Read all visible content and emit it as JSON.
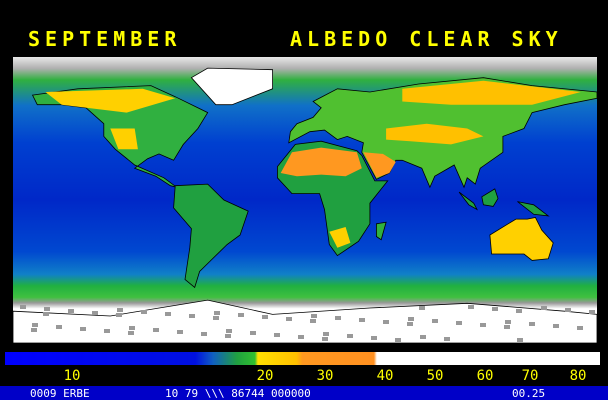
{
  "header": {
    "month": "SEPTEMBER",
    "title": "ALBEDO CLEAR SKY"
  },
  "legend": {
    "ticks": [
      "10",
      "20",
      "30",
      "40",
      "50",
      "60",
      "70",
      "80"
    ]
  },
  "footer": {
    "left": "0009 ERBE",
    "middle": "10 79 \\\\\\ 86744 000000",
    "right": "00.25"
  }
}
